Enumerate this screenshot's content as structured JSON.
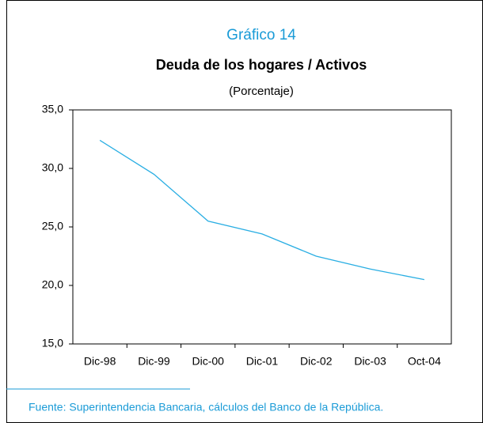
{
  "chart_data": {
    "type": "line",
    "title": "Gráfico 14",
    "subtitle": "Deuda de los hogares / Activos",
    "unit": "(Porcentaje)",
    "categories": [
      "Dic-98",
      "Dic-99",
      "Dic-00",
      "Dic-01",
      "Dic-02",
      "Dic-03",
      "Oct-04"
    ],
    "values": [
      32.4,
      29.5,
      25.5,
      24.4,
      22.5,
      21.4,
      20.5
    ],
    "color": "#29aee3",
    "ylim": [
      15,
      35
    ],
    "yticks": [
      {
        "value": 15,
        "label": "15,0"
      },
      {
        "value": 20,
        "label": "20,0"
      },
      {
        "value": 25,
        "label": "25,0"
      },
      {
        "value": 30,
        "label": "30,0"
      },
      {
        "value": 35,
        "label": "35,0"
      }
    ],
    "source": "Fuente: Superintendencia Bancaria, cálculos del Banco de la República."
  }
}
